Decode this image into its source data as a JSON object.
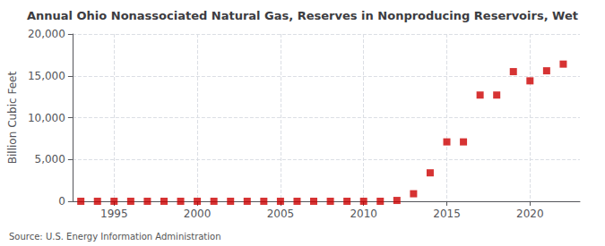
{
  "chart_data": {
    "type": "scatter",
    "title": "Annual Ohio Nonassociated Natural Gas, Reserves in Nonproducing Reservoirs, Wet",
    "ylabel": "Billion Cubic Feet",
    "source": "Source: U.S. Energy Information Administration",
    "x": [
      1993,
      1994,
      1995,
      1996,
      1997,
      1998,
      1999,
      2000,
      2001,
      2002,
      2003,
      2004,
      2005,
      2006,
      2007,
      2008,
      2009,
      2010,
      2011,
      2012,
      2013,
      2014,
      2015,
      2016,
      2017,
      2018,
      2019,
      2020,
      2021,
      2022
    ],
    "values": [
      0,
      0,
      0,
      0,
      0,
      0,
      0,
      0,
      0,
      0,
      0,
      0,
      0,
      0,
      0,
      0,
      0,
      0,
      0,
      100,
      900,
      3400,
      7100,
      7100,
      12700,
      12700,
      15500,
      14400,
      15600,
      16400
    ],
    "color": "#cc0000",
    "marker": "square",
    "xlim": [
      1992.5,
      2023
    ],
    "xticks": [
      1995,
      2000,
      2005,
      2010,
      2015,
      2020
    ],
    "ylim": [
      0,
      20000
    ],
    "yticks": [
      0,
      {
        "value": 5000,
        "label": "5,000"
      },
      {
        "value": 10000,
        "label": "10,000"
      },
      {
        "value": 15000,
        "label": "15,000"
      },
      {
        "value": 20000,
        "label": "20,000"
      }
    ],
    "grid": true
  }
}
